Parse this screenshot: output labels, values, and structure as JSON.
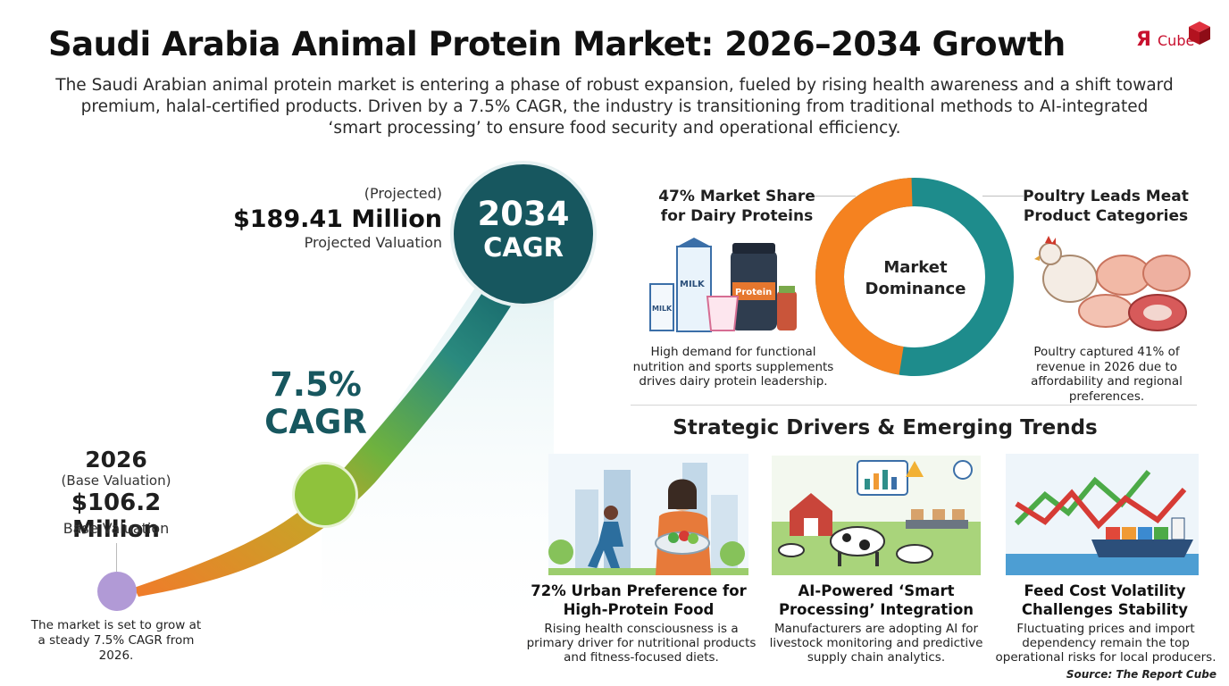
{
  "header": {
    "title": "Saudi Arabia Animal Protein Market: 2026–2034 Growth",
    "intro": "The Saudi Arabian animal protein market is entering a phase of robust expansion, fueled by rising health awareness and a shift toward premium, halal-certified products. Driven by a 7.5% CAGR, the industry is transitioning from traditional methods to AI-integrated ‘smart processing’ to ensure food security and operational efficiency."
  },
  "logo": {
    "mark": "Я",
    "word": "Cube"
  },
  "growth": {
    "projected_label": "(Projected)",
    "projected_value": "$189.41 Million",
    "projected_desc": "Projected Valuation",
    "end_year": "2034",
    "end_cagr": "CAGR",
    "cagr_value": "7.5%",
    "cagr_label": "CAGR",
    "base_year": "2026",
    "base_label": "(Base Valuation)",
    "base_value": "$106.2 Million",
    "base_desc": "Base Valuation",
    "note": "The market is set to grow at a steady 7.5% CAGR from 2026."
  },
  "dominance": {
    "center_label": "Market Dominance",
    "dairy_title": "47% Market Share for Dairy Proteins",
    "dairy_desc": "High demand for functional nutrition and sports supplements drives dairy protein leadership.",
    "poultry_title": "Poultry Leads Meat Product Categories",
    "poultry_desc": "Poultry captured 41% of revenue in 2026 due to affordability and regional preferences.",
    "dairy_share_pct": 47,
    "colors": {
      "dairy": "#f58220",
      "poultry": "#1e8c8c"
    },
    "product_labels": {
      "milk": "MILK",
      "protein": "Protein"
    }
  },
  "drivers": {
    "title": "Strategic Drivers & Emerging Trends",
    "cards": [
      {
        "title": "72% Urban Preference for High-Protein Food",
        "desc": "Rising health consciousness is a primary driver for nutritional products and fitness-focused diets.",
        "icon": "urban-fitness-illustration"
      },
      {
        "title": "AI-Powered ‘Smart Processing’ Integration",
        "desc": "Manufacturers are adopting AI for livestock monitoring and predictive supply chain analytics.",
        "icon": "smart-farm-illustration"
      },
      {
        "title": "Feed Cost Volatility Challenges Stability",
        "desc": "Fluctuating prices and import dependency remain the top operational risks for local producers.",
        "icon": "cargo-ship-chart-illustration"
      }
    ]
  },
  "source": "Source: The Report Cube"
}
